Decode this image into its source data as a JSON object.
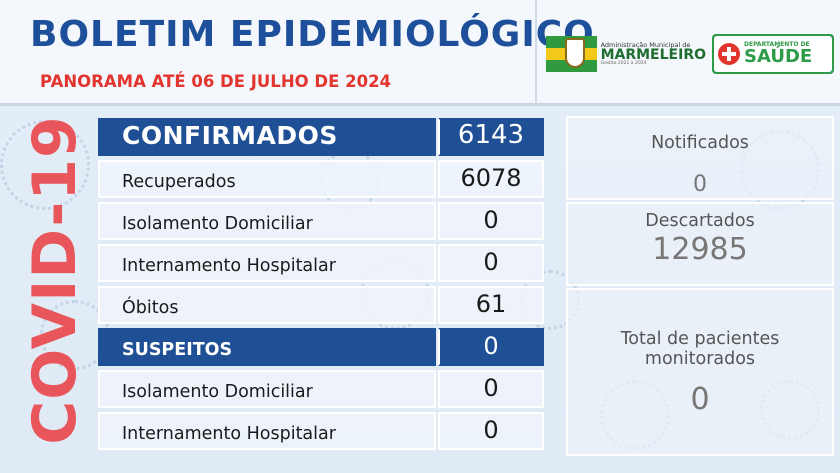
{
  "header": {
    "title": "BOLETIM EPIDEMIOLÓGICO",
    "subtitle": "PANORAMA ATÉ  06 DE JULHO DE 2024",
    "municipality_logo": {
      "top_text": "Administração Municipal de",
      "name": "MARMELEIRO",
      "bottom_text": "Gestão 2021 a 2024"
    },
    "health_logo": {
      "top_text": "DEPARTAMENTO DE",
      "name": "SAÚDE"
    }
  },
  "side_label": "COVID-19",
  "table": {
    "confirmados": {
      "label": "CONFIRMADOS",
      "value": "6143"
    },
    "recuperados": {
      "label": "Recuperados",
      "value": "6078"
    },
    "isolamento_conf": {
      "label": "Isolamento Domiciliar",
      "value": "0"
    },
    "internamento_conf": {
      "label": "Internamento Hospitalar",
      "value": "0"
    },
    "obitos": {
      "label": "Óbitos",
      "value": "61"
    },
    "suspeitos": {
      "label": "SUSPEITOS",
      "value": "0"
    },
    "isolamento_susp": {
      "label": "Isolamento Domiciliar",
      "value": "0"
    },
    "internamento_susp": {
      "label": "Internamento Hospitalar",
      "value": "0"
    }
  },
  "right_panel": {
    "notificados": {
      "label": "Notificados",
      "value": "0"
    },
    "descartados": {
      "label": "Descartados",
      "value": "12985"
    },
    "monitorados": {
      "label_line1": "Total de pacientes",
      "label_line2": "monitorados",
      "value": "0"
    }
  },
  "colors": {
    "title_blue": "#1e4f9a",
    "subtitle_red": "#e2352e",
    "header_row_blue": "#1f4f95",
    "covid_red": "#e8555a",
    "health_green": "#2e9b48"
  }
}
